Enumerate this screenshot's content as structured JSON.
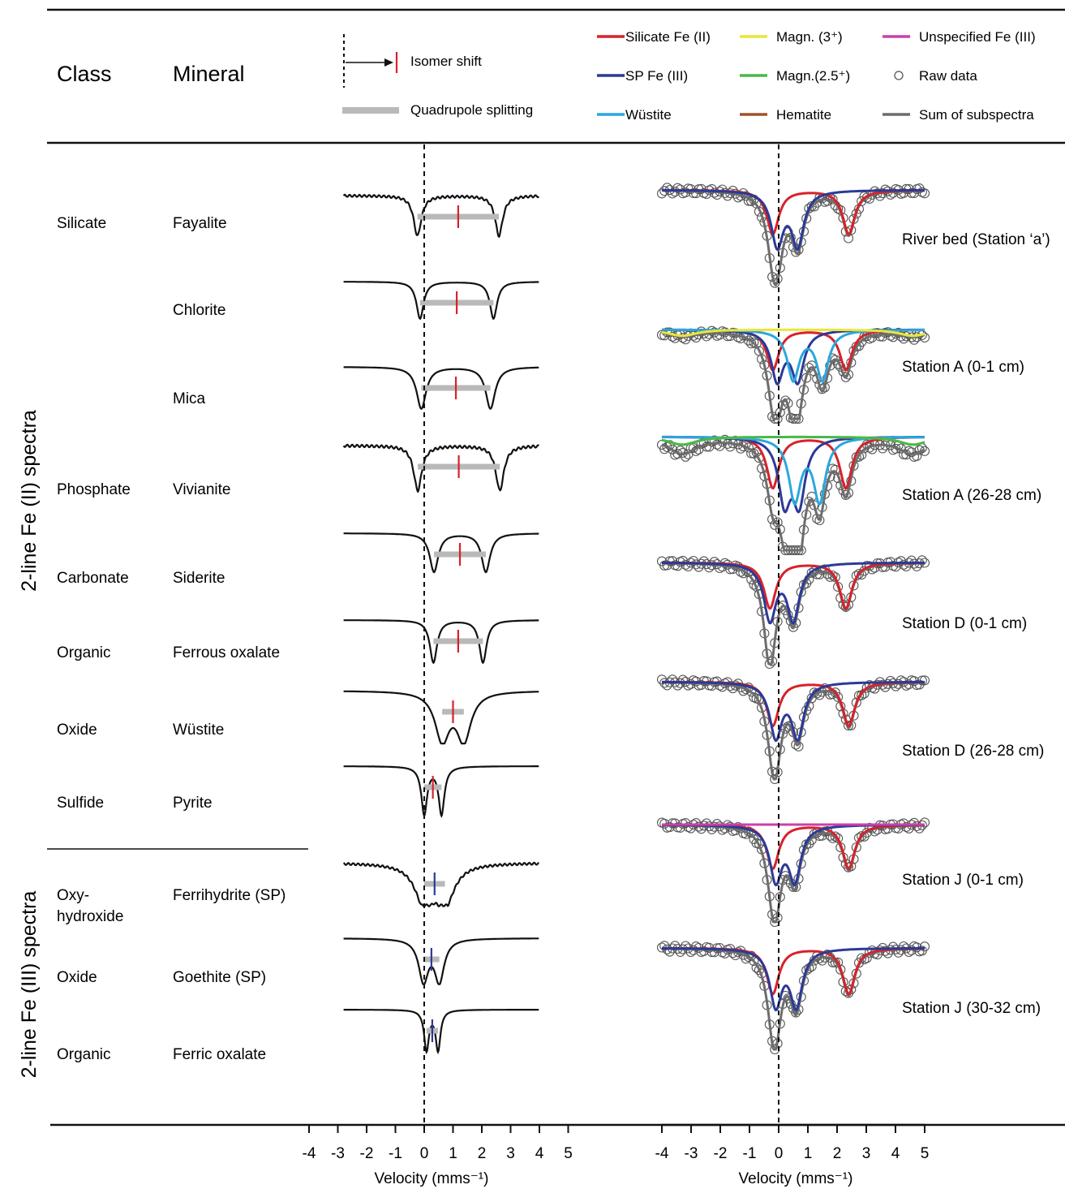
{
  "header": {
    "class": "Class",
    "mineral": "Mineral",
    "isomer_shift": "Isomer shift",
    "quadrupole_splitting": "Quadrupole splitting"
  },
  "legend": [
    {
      "key": "silicate",
      "label": "Silicate Fe (II)",
      "color": "#d7222a",
      "style": "line"
    },
    {
      "key": "magn3",
      "label": "Magn. (3⁺)",
      "color": "#e9e63a",
      "style": "line"
    },
    {
      "key": "unspec",
      "label": "Unspecified Fe (III)",
      "color": "#cc3fa8",
      "style": "line"
    },
    {
      "key": "sp",
      "label": "SP Fe (III)",
      "color": "#2b3a98",
      "style": "line"
    },
    {
      "key": "magn25",
      "label": "Magn.(2.5⁺)",
      "color": "#47b94a",
      "style": "line"
    },
    {
      "key": "raw",
      "label": "Raw data",
      "color": "#555555",
      "style": "circle"
    },
    {
      "key": "wustite",
      "label": "Wüstite",
      "color": "#2aa7dd",
      "style": "line"
    },
    {
      "key": "hematite",
      "label": "Hematite",
      "color": "#a0522d",
      "style": "line"
    },
    {
      "key": "sum",
      "label": "Sum of subspectra",
      "color": "#6d6d6d",
      "style": "line"
    }
  ],
  "group_labels": {
    "fe2": "2-line Fe (II) spectra",
    "fe3": "2-line Fe (III) spectra"
  },
  "axes": {
    "left_xlabel": "Velocity (mms⁻¹)",
    "right_xlabel": "Velocity (mms⁻¹)",
    "ticks": [
      "-4",
      "-3",
      "-2",
      "-1",
      "0",
      "1",
      "2",
      "3",
      "4",
      "5"
    ]
  },
  "chart_data": [
    {
      "type": "line",
      "panel": "reference-spectra",
      "x_unit": "mm/s",
      "xlim": [
        -4,
        5
      ],
      "rows": [
        {
          "class": "Silicate",
          "mineral": "Fayalite",
          "isomer_shift": 1.18,
          "quadrupole_splitting": 2.83,
          "group": "Fe(II)"
        },
        {
          "class": "",
          "mineral": "Chlorite",
          "isomer_shift": 1.13,
          "quadrupole_splitting": 2.55,
          "group": "Fe(II)"
        },
        {
          "class": "",
          "mineral": "Mica",
          "isomer_shift": 1.1,
          "quadrupole_splitting": 2.4,
          "group": "Fe(II)"
        },
        {
          "class": "Phosphate",
          "mineral": "Vivianite",
          "isomer_shift": 1.2,
          "quadrupole_splitting": 2.85,
          "group": "Fe(II)"
        },
        {
          "class": "Carbonate",
          "mineral": "Siderite",
          "isomer_shift": 1.24,
          "quadrupole_splitting": 1.8,
          "group": "Fe(II)"
        },
        {
          "class": "Organic",
          "mineral": "Ferrous oxalate",
          "isomer_shift": 1.18,
          "quadrupole_splitting": 1.72,
          "group": "Fe(II)"
        },
        {
          "class": "Oxide",
          "mineral": "Wüstite",
          "isomer_shift": 1.0,
          "quadrupole_splitting": 0.75,
          "group": "Fe(II)"
        },
        {
          "class": "Sulfide",
          "mineral": "Pyrite",
          "isomer_shift": 0.3,
          "quadrupole_splitting": 0.6,
          "group": "Fe(II)"
        },
        {
          "class": "Oxy-\nhydroxide",
          "mineral": "Ferrihydrite (SP)",
          "isomer_shift": 0.36,
          "quadrupole_splitting": 0.72,
          "group": "Fe(III)"
        },
        {
          "class": "Oxide",
          "mineral": "Goethite (SP)",
          "isomer_shift": 0.25,
          "quadrupole_splitting": 0.55,
          "group": "Fe(III)"
        },
        {
          "class": "Organic",
          "mineral": "Ferric oxalate",
          "isomer_shift": 0.28,
          "quadrupole_splitting": 0.4,
          "group": "Fe(III)"
        }
      ]
    },
    {
      "type": "line",
      "panel": "sample-spectra",
      "x_unit": "mm/s",
      "xlim": [
        -4,
        5
      ],
      "samples": [
        {
          "label": "River  bed (Station ‘a’)",
          "components": [
            {
              "series": "silicate",
              "doublet": [
                -0.2,
                2.4
              ]
            },
            {
              "series": "sp",
              "doublet": [
                -0.05,
                0.65
              ]
            }
          ]
        },
        {
          "label": "Station A (0-1 cm)",
          "components": [
            {
              "series": "silicate",
              "doublet": [
                -0.2,
                2.3
              ]
            },
            {
              "series": "sp",
              "doublet": [
                -0.05,
                0.65
              ]
            },
            {
              "series": "wustite",
              "doublet": [
                0.5,
                1.5
              ]
            },
            {
              "series": "magn3",
              "sextet": true
            }
          ]
        },
        {
          "label": "Station A (26-28 cm)",
          "components": [
            {
              "series": "silicate",
              "doublet": [
                -0.2,
                2.3
              ]
            },
            {
              "series": "sp",
              "doublet": [
                0.2,
                0.7
              ]
            },
            {
              "series": "wustite",
              "doublet": [
                0.55,
                1.4
              ]
            },
            {
              "series": "magn3",
              "sextet": true
            },
            {
              "series": "magn25",
              "sextet": true
            }
          ]
        },
        {
          "label": "Station D (0-1 cm)",
          "components": [
            {
              "series": "silicate",
              "doublet": [
                -0.3,
                2.3
              ]
            },
            {
              "series": "sp",
              "doublet": [
                -0.3,
                0.5
              ]
            }
          ]
        },
        {
          "label": "Station D (26-28 cm)",
          "components": [
            {
              "series": "silicate",
              "doublet": [
                -0.2,
                2.4
              ]
            },
            {
              "series": "sp",
              "doublet": [
                -0.1,
                0.65
              ]
            }
          ]
        },
        {
          "label": "Station J (0-1 cm)",
          "components": [
            {
              "series": "silicate",
              "doublet": [
                -0.2,
                2.4
              ]
            },
            {
              "series": "sp",
              "doublet": [
                -0.1,
                0.55
              ]
            },
            {
              "series": "unspec",
              "flat": true
            }
          ]
        },
        {
          "label": "Station J (30-32 cm)",
          "components": [
            {
              "series": "silicate",
              "doublet": [
                -0.2,
                2.4
              ]
            },
            {
              "series": "sp",
              "doublet": [
                -0.1,
                0.6
              ]
            }
          ]
        }
      ]
    }
  ]
}
